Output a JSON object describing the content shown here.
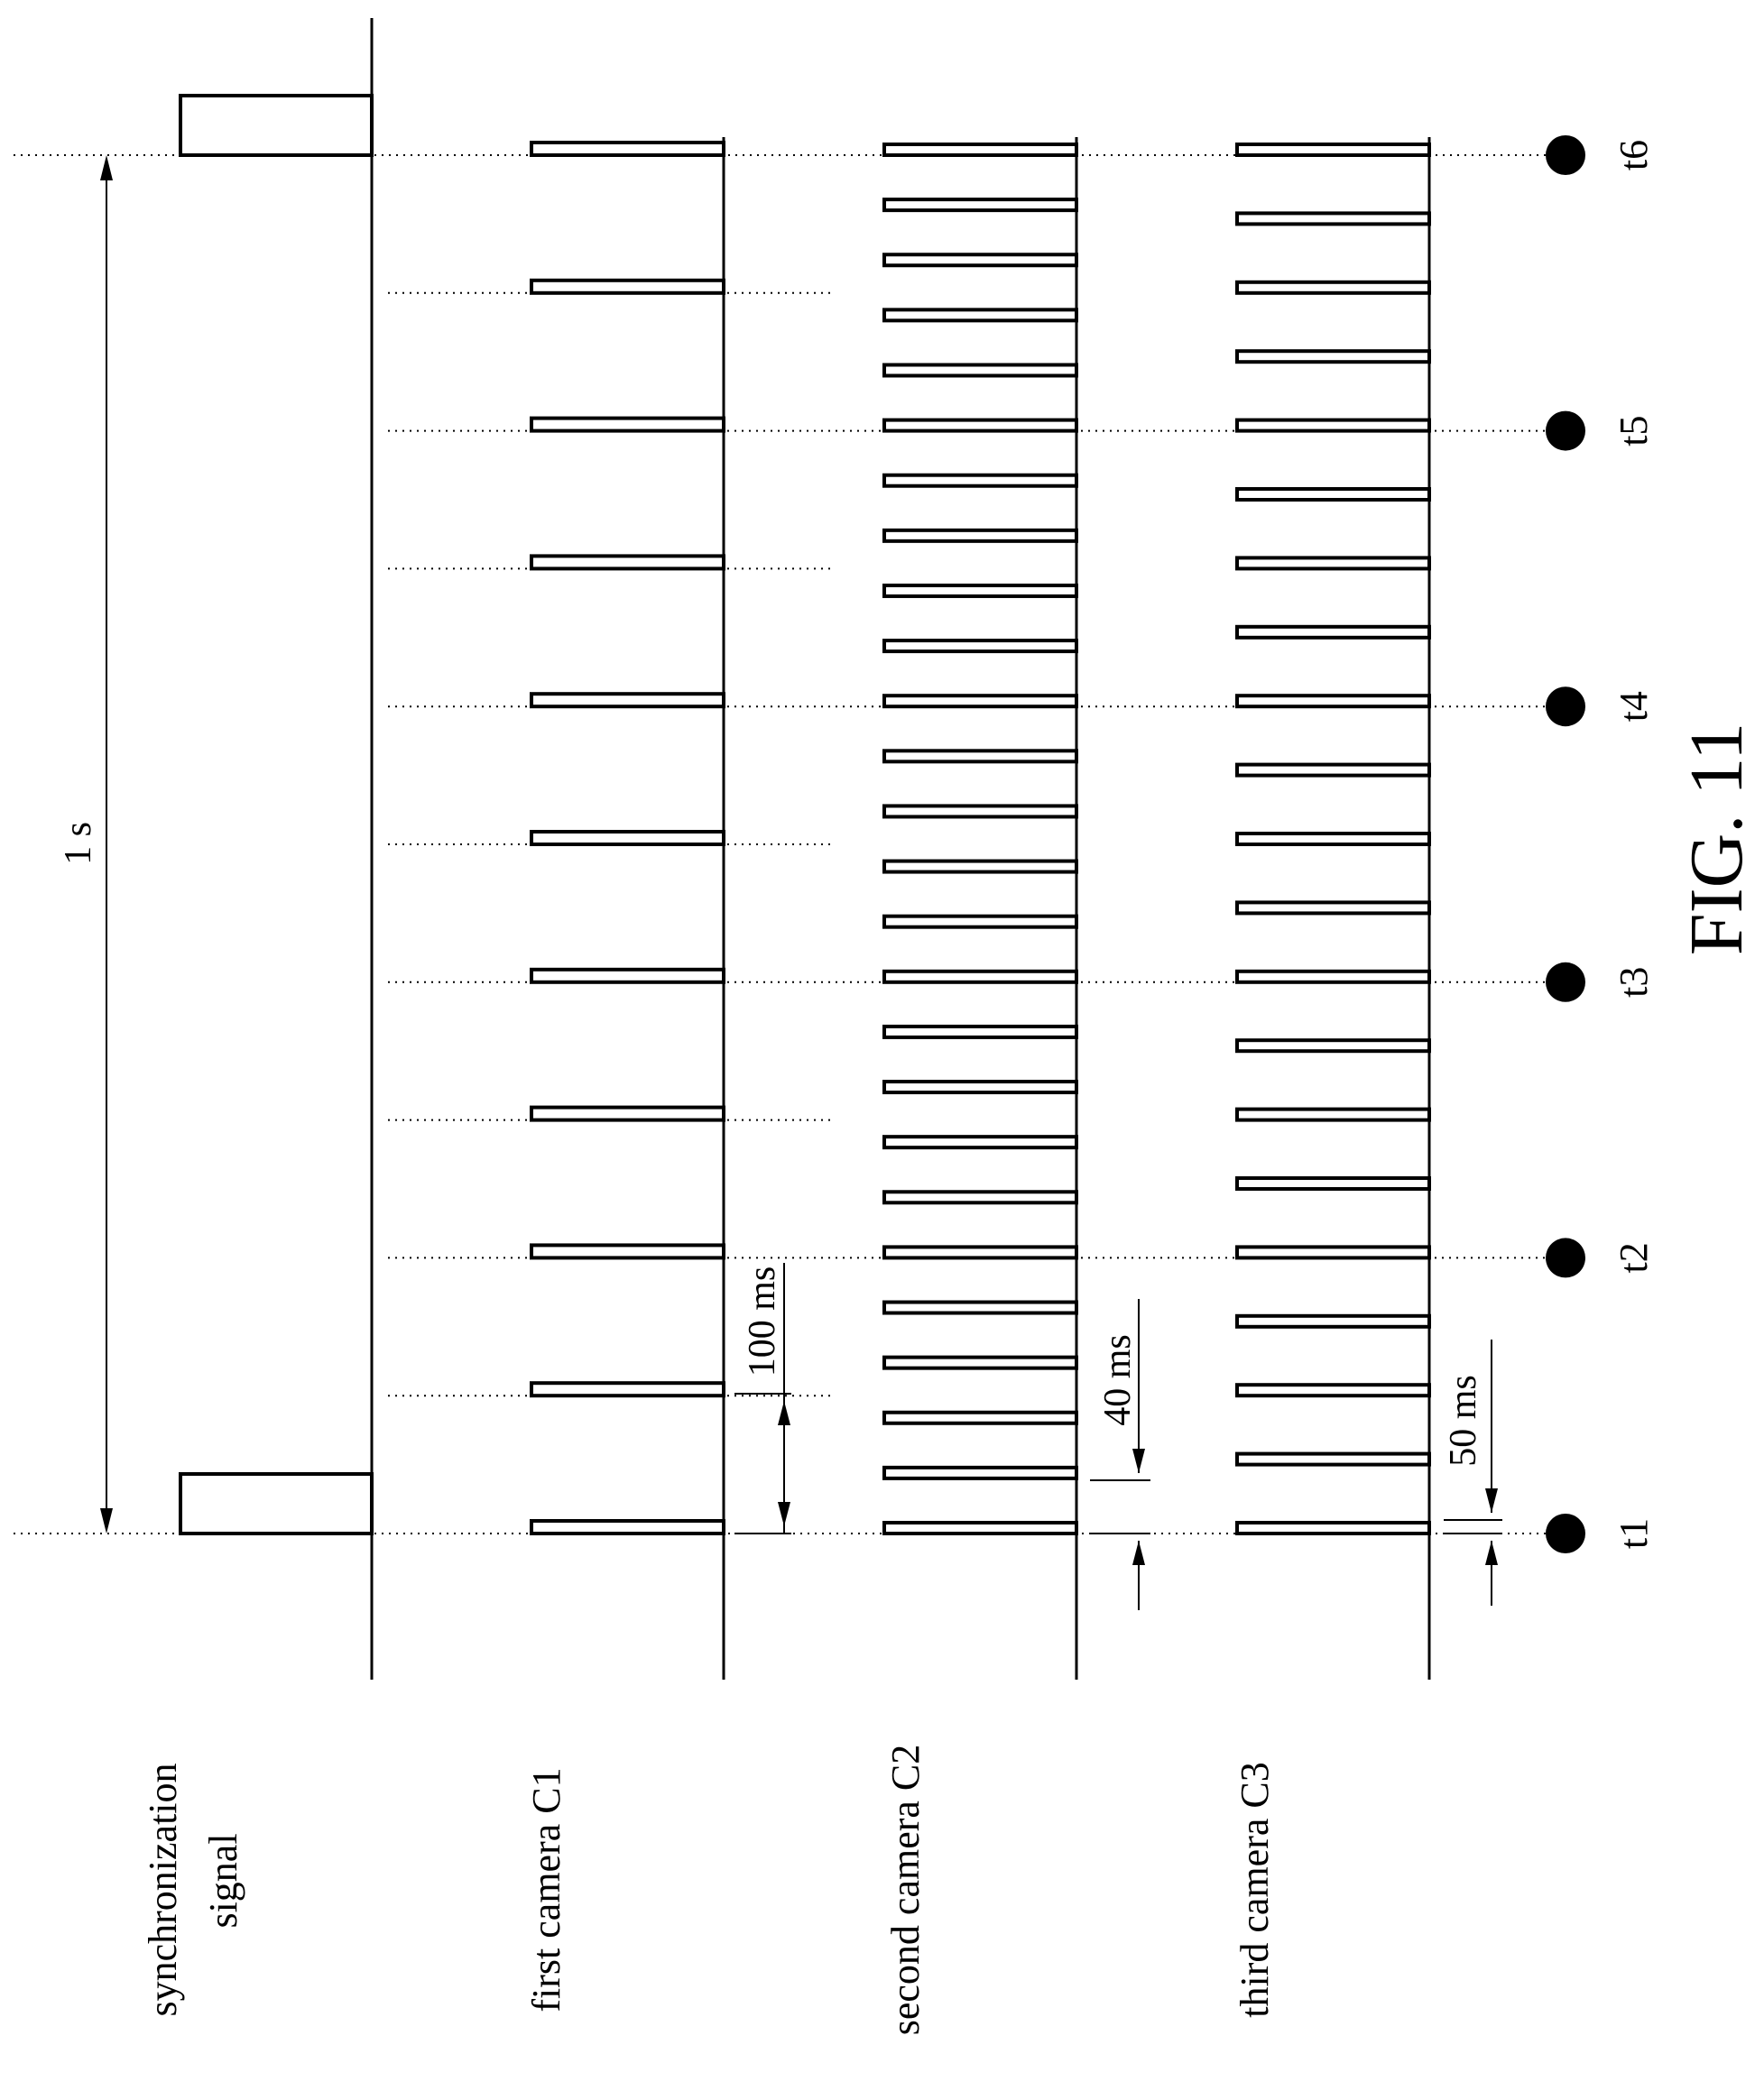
{
  "figure_label": "FIG. 11",
  "signals": [
    {
      "id": "sync",
      "label_lines": [
        "synchronization",
        "signal"
      ],
      "pulses_ms": [
        0,
        1000
      ],
      "pulse_kind": "wide"
    },
    {
      "id": "c1",
      "label_lines": [
        "first camera C1"
      ],
      "period_ms": 100
    },
    {
      "id": "c2",
      "label_lines": [
        "second camera C2"
      ],
      "period_ms": 40
    },
    {
      "id": "c3",
      "label_lines": [
        "third camera C3"
      ],
      "period_ms": 50
    }
  ],
  "duration_ms": 1000,
  "span_label": "1 s",
  "interval_labels": {
    "c1": "100 ms",
    "c2": "40 ms",
    "c3": "50 ms"
  },
  "time_markers": [
    {
      "label": "t1",
      "ms": 0
    },
    {
      "label": "t2",
      "ms": 200
    },
    {
      "label": "t3",
      "ms": 400
    },
    {
      "label": "t4",
      "ms": 600
    },
    {
      "label": "t5",
      "ms": 800
    },
    {
      "label": "t6",
      "ms": 1000
    }
  ]
}
